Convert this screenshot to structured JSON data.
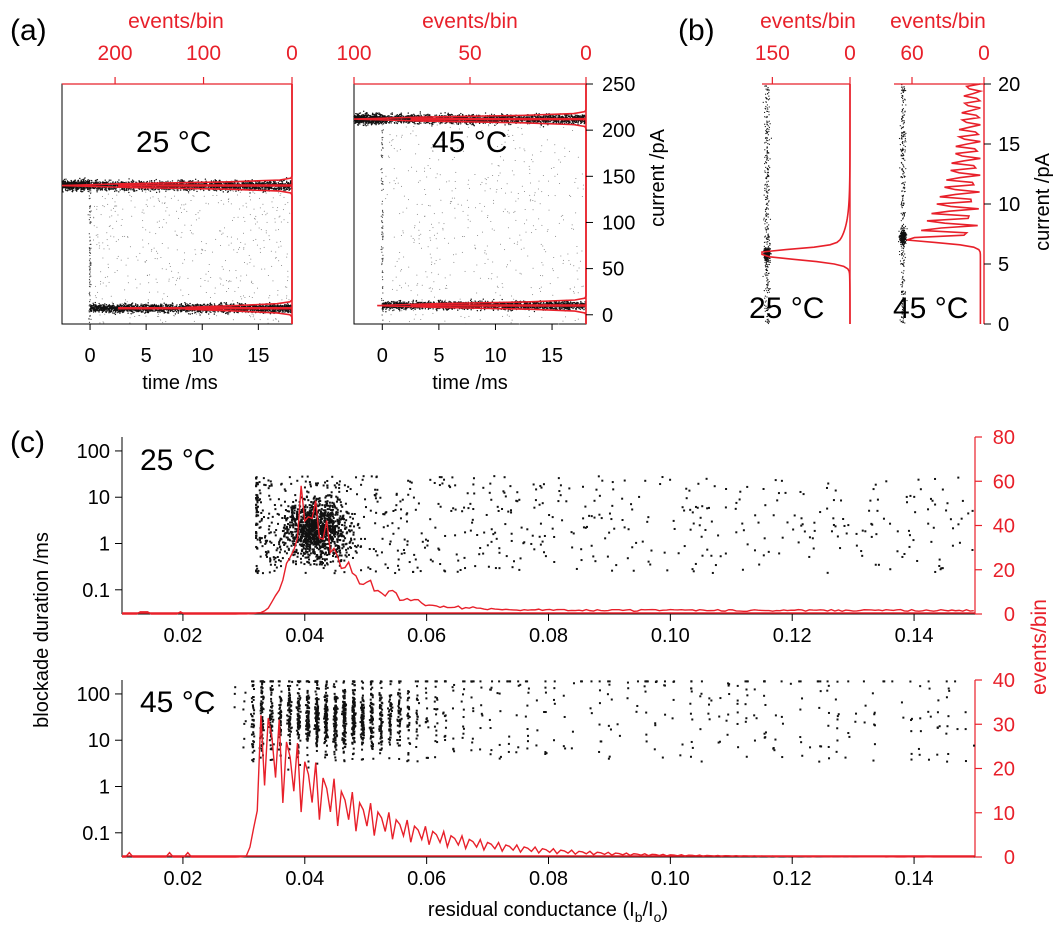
{
  "figure": {
    "panel_labels": [
      "(a)",
      "(b)",
      "(c)"
    ],
    "colors": {
      "axis": "#000000",
      "histogram": "#e8202a",
      "points": "#111111"
    }
  },
  "chart_data": [
    {
      "id": "a-25",
      "type": "scatter",
      "annotation": "25 °C",
      "xlabel": "time /ms",
      "x_ticks": [
        "0",
        "5",
        "10",
        "15"
      ],
      "xlim": [
        -2.5,
        18
      ],
      "top_label": "events/bin",
      "top_ticks": [
        "200",
        "100",
        "0"
      ],
      "top_lim": [
        260,
        0
      ],
      "ylim": [
        -10,
        250
      ],
      "levels": [
        {
          "from": -2.5,
          "to": 18,
          "y": 140
        },
        {
          "from": 0,
          "to": 18,
          "y": 7
        }
      ],
      "histogram": {
        "y": [
          140,
          7
        ],
        "peak": [
          260,
          130
        ]
      }
    },
    {
      "id": "a-45",
      "type": "scatter",
      "annotation": "45 °C",
      "xlabel": "time /ms",
      "x_ticks": [
        "0",
        "5",
        "10",
        "15"
      ],
      "xlim": [
        -2.5,
        18
      ],
      "top_label": "events/bin",
      "top_ticks": [
        "100",
        "50",
        "0"
      ],
      "top_lim": [
        100,
        0
      ],
      "ylim": [
        -10,
        250
      ],
      "ylabel": "current /pA",
      "y_ticks": [
        "0",
        "50",
        "100",
        "150",
        "200",
        "250"
      ],
      "levels": [
        {
          "from": -2.5,
          "to": 18,
          "y": 212
        },
        {
          "from": 0,
          "to": 18,
          "y": 10
        }
      ],
      "histogram": {
        "y": [
          212,
          10
        ],
        "peak": [
          100,
          90
        ]
      }
    },
    {
      "id": "b-25",
      "type": "area",
      "annotation": "25 °C",
      "top_label": "events/bin",
      "top_ticks": [
        "150",
        "0"
      ],
      "top_lim": [
        170,
        0
      ],
      "ylim": [
        0,
        20
      ],
      "histogram_peak": {
        "y": 5.8,
        "max": 170
      }
    },
    {
      "id": "b-45",
      "type": "area",
      "annotation": "45 °C",
      "top_label": "events/bin",
      "top_ticks": [
        "60",
        "0"
      ],
      "top_lim": [
        75,
        0
      ],
      "ylim": [
        0,
        20
      ],
      "ylabel": "current /pA",
      "y_ticks": [
        "0",
        "5",
        "10",
        "15",
        "20"
      ],
      "histogram_peak": {
        "y": 7.2,
        "max": 72
      }
    },
    {
      "id": "c-25",
      "type": "scatter",
      "annotation": "25 °C",
      "ylabel": "blockade duration /ms",
      "y_scale": "log",
      "y_ticks": [
        "0.1",
        "1",
        "10",
        "100"
      ],
      "ylim": [
        0.03,
        200
      ],
      "xlim": [
        0.01,
        0.15
      ],
      "x_ticks": [
        "0.02",
        "0.04",
        "0.06",
        "0.08",
        "0.10",
        "0.12",
        "0.14"
      ],
      "right_ticks": [
        "0",
        "20",
        "40",
        "60",
        "80"
      ],
      "right_lim": [
        0,
        80
      ],
      "histogram_peak": {
        "x": 0.041,
        "max": 72
      },
      "cluster_center": {
        "x": 0.042,
        "duration_ms": 2
      }
    },
    {
      "id": "c-45",
      "type": "scatter",
      "annotation": "45 °C",
      "y_scale": "log",
      "y_ticks": [
        "0.1",
        "1",
        "10",
        "100"
      ],
      "ylim": [
        0.03,
        200
      ],
      "xlim": [
        0.01,
        0.15
      ],
      "x_ticks": [
        "0.02",
        "0.04",
        "0.06",
        "0.08",
        "0.10",
        "0.12",
        "0.14"
      ],
      "xlabel": "residual conductance (I",
      "xlabel_sub1": "b",
      "xlabel_mid": "/I",
      "xlabel_sub2": "o",
      "xlabel_end": ")",
      "right_label": "events/bin",
      "right_ticks": [
        "0",
        "10",
        "20",
        "30",
        "40"
      ],
      "right_lim": [
        0,
        40
      ],
      "histogram_peak": {
        "x": 0.0335,
        "max": 40
      },
      "cluster_center": {
        "x": 0.045,
        "duration_ms": 30
      }
    }
  ]
}
